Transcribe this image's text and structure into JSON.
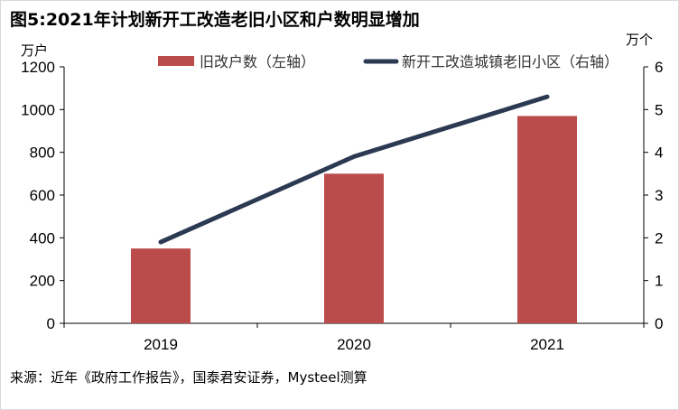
{
  "title": "图5:2021年计划新开工改造老旧小区和户数明显增加",
  "source": "来源：近年《政府工作报告》，国泰君安证券，Mysteel测算",
  "chart_data": {
    "type": "bar+line",
    "categories": [
      "2019",
      "2020",
      "2021"
    ],
    "series": [
      {
        "name": "旧改户数（左轴）",
        "type": "bar",
        "axis": "left",
        "values": [
          350,
          700,
          970
        ],
        "color": "#BC4B4B"
      },
      {
        "name": "新开工改造城镇老旧小区（右轴）",
        "type": "line",
        "axis": "right",
        "values": [
          1.9,
          3.9,
          5.3
        ],
        "color": "#2B3A52"
      }
    ],
    "left_axis": {
      "unit": "万户",
      "ylim": [
        0,
        1200
      ],
      "ticks": [
        "0",
        "200",
        "400",
        "600",
        "800",
        "1000",
        "1200"
      ]
    },
    "right_axis": {
      "unit": "万个",
      "ylim": [
        0,
        6
      ],
      "ticks": [
        "0",
        "1",
        "2",
        "3",
        "4",
        "5",
        "6"
      ]
    },
    "grid": false,
    "legend": "top"
  }
}
